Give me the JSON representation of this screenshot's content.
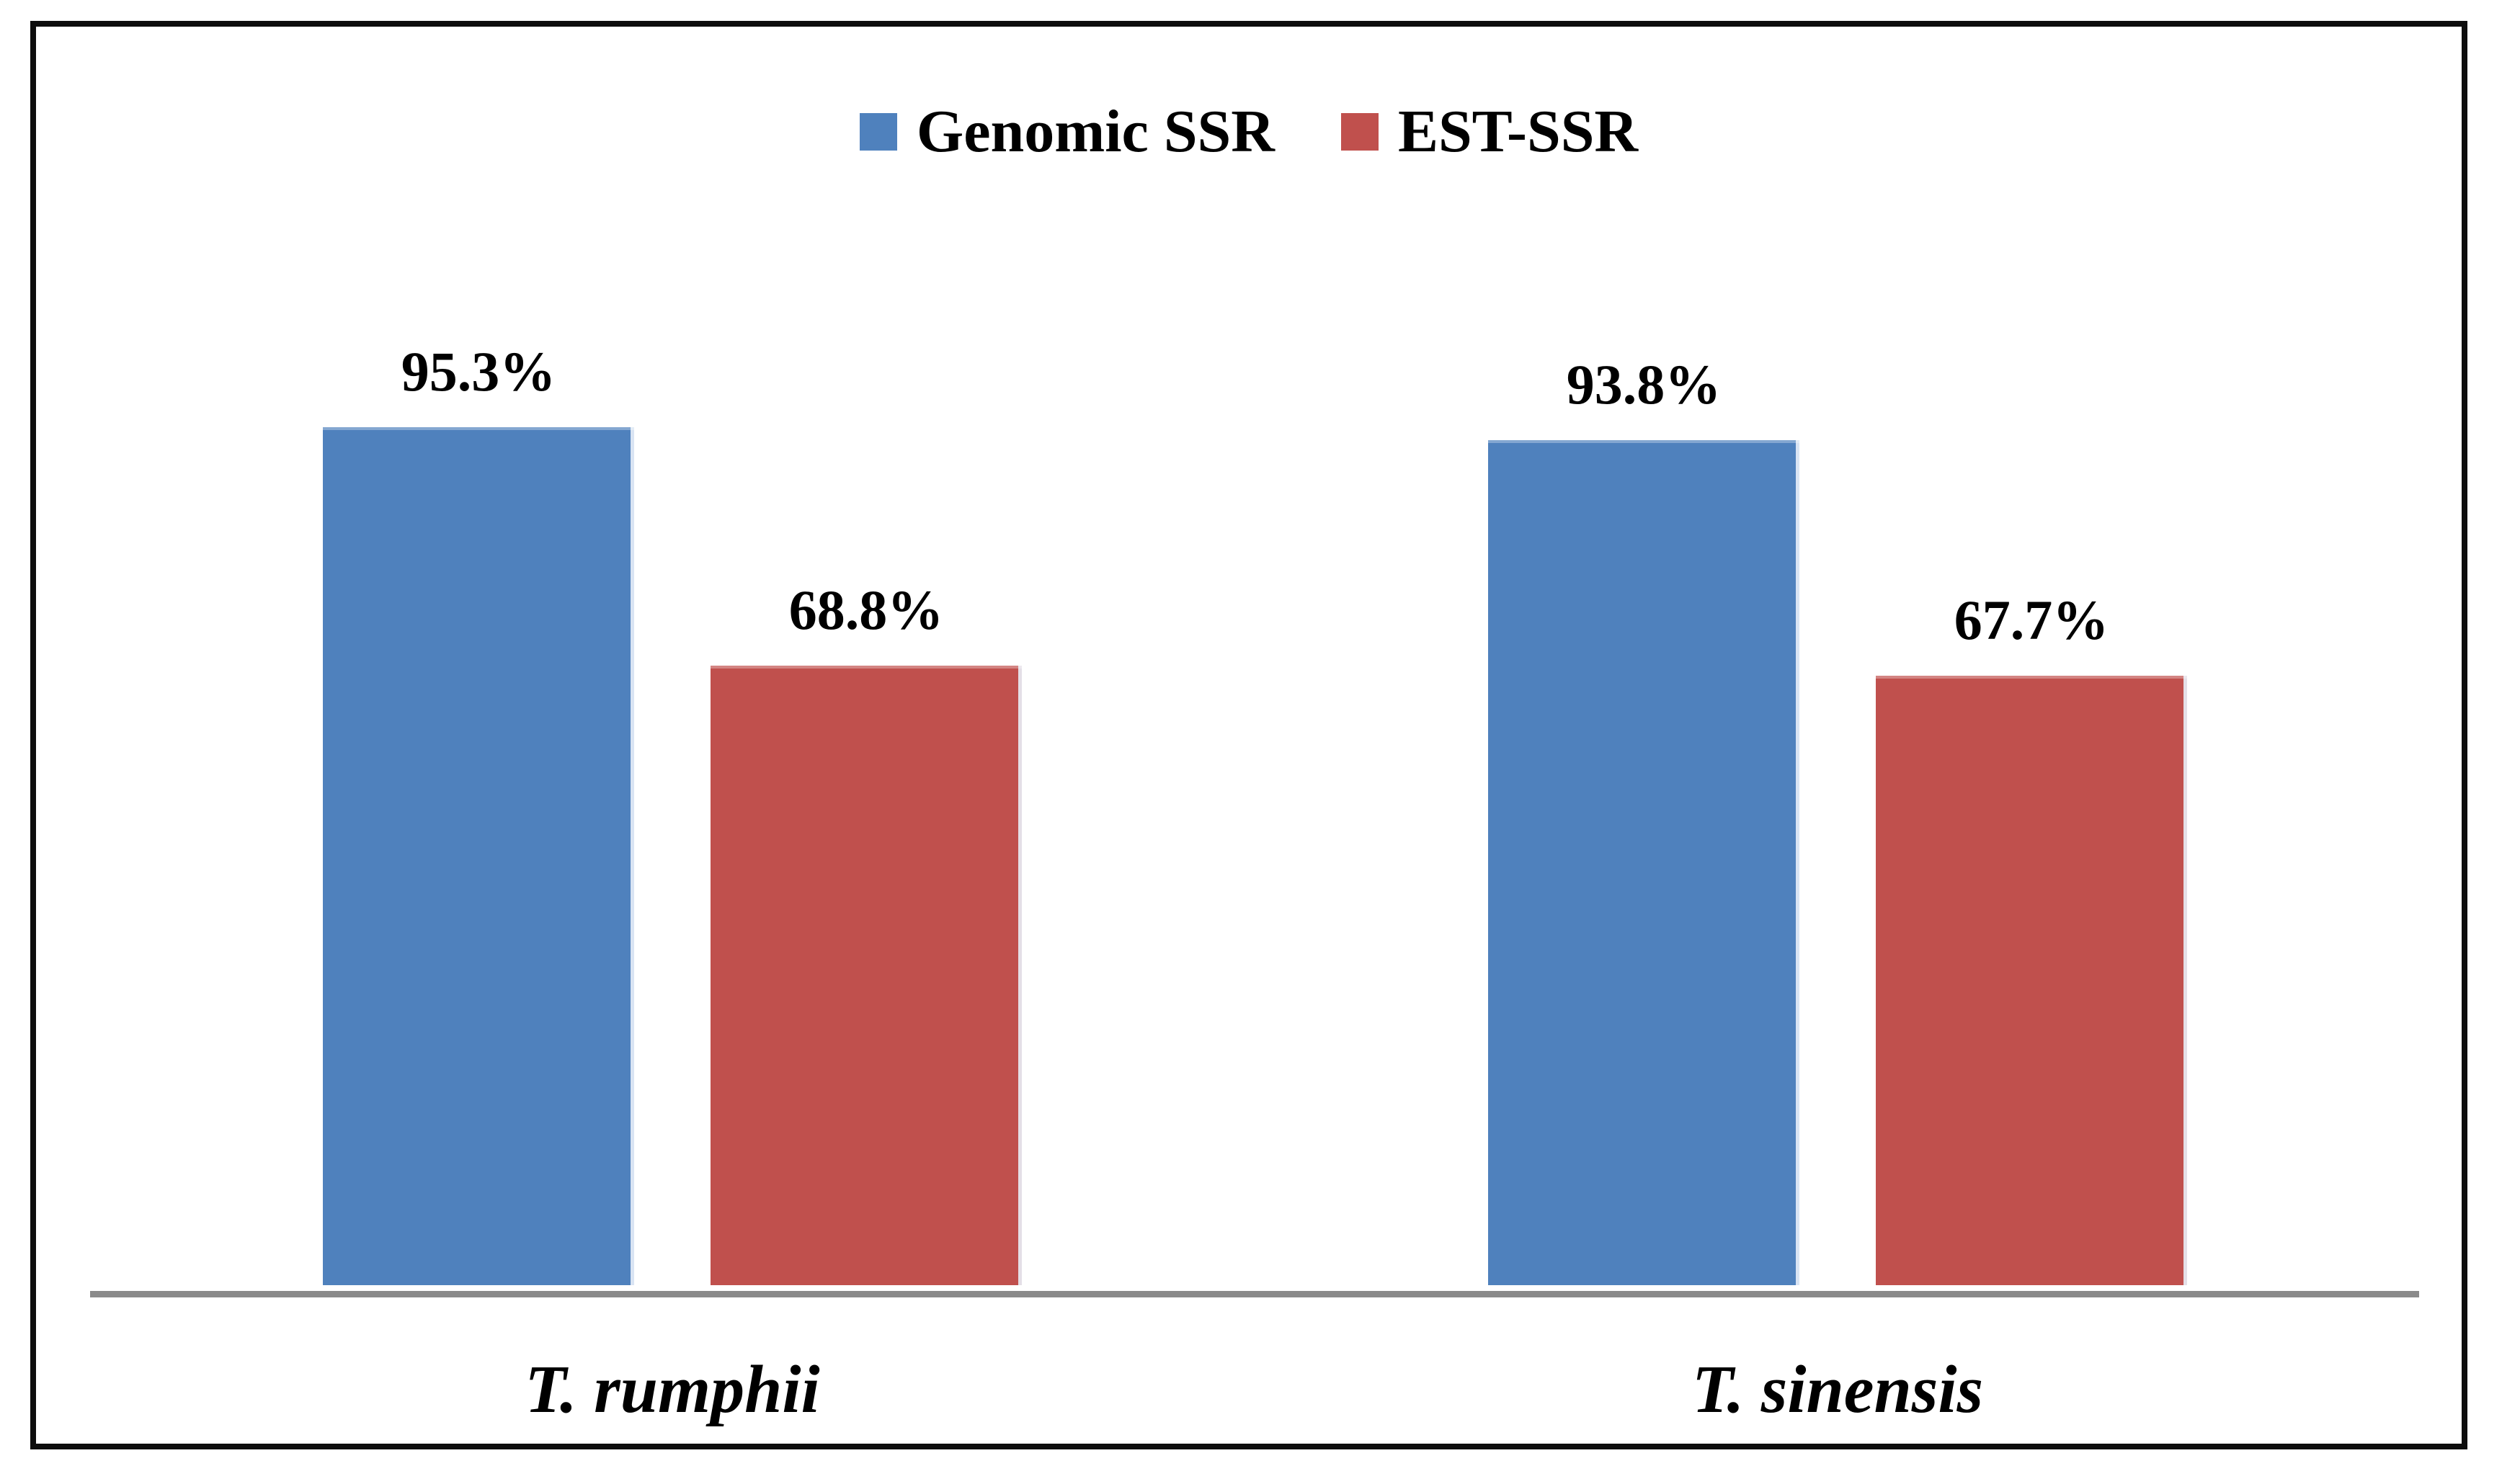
{
  "chart_data": {
    "type": "bar",
    "categories": [
      "T. rumphii",
      "T. sinensis"
    ],
    "series": [
      {
        "name": "Genomic SSR",
        "color": "#4F81BD",
        "values": [
          95.3,
          93.8
        ],
        "labels": [
          "95.3%",
          "93.8%"
        ]
      },
      {
        "name": "EST-SSR",
        "color": "#C0504D",
        "values": [
          68.8,
          67.7
        ],
        "labels": [
          "68.8%",
          "67.7%"
        ]
      }
    ],
    "ylim": [
      0,
      100
    ],
    "grid": false,
    "legend_position": "top-center",
    "axis_line_color": "#8A8A8A",
    "frame_border_color": "#0D0D0D",
    "value_suffix": "%"
  }
}
